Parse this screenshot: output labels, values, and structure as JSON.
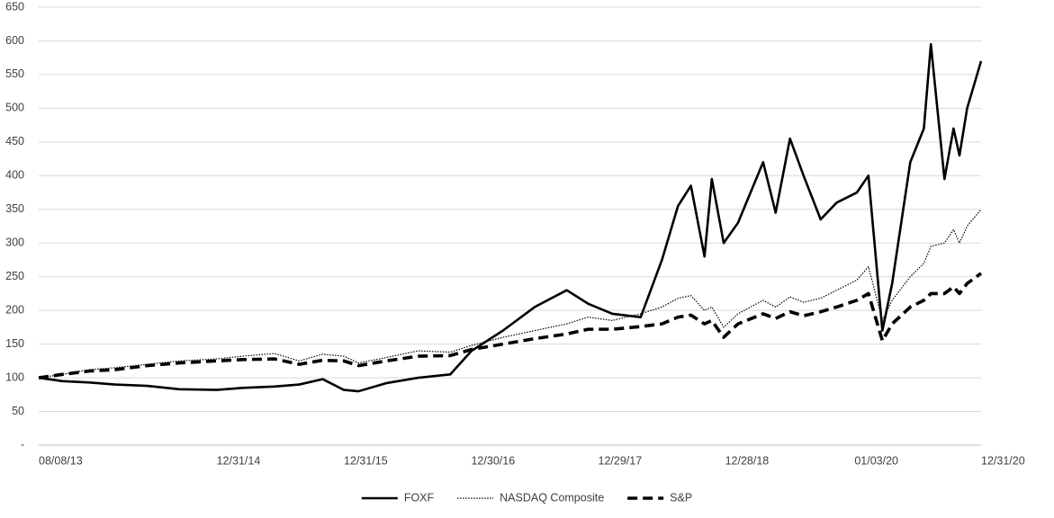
{
  "chart_data": {
    "type": "line",
    "x": [
      "2013-08-08",
      "2013-10-15",
      "2013-12-31",
      "2014-03-15",
      "2014-06-15",
      "2014-09-15",
      "2014-12-31",
      "2015-03-15",
      "2015-06-15",
      "2015-08-25",
      "2015-10-31",
      "2015-12-31",
      "2016-02-11",
      "2016-04-30",
      "2016-07-31",
      "2016-10-31",
      "2016-12-31",
      "2017-03-31",
      "2017-06-30",
      "2017-09-30",
      "2017-11-30",
      "2018-02-08",
      "2018-04-30",
      "2018-06-30",
      "2018-08-15",
      "2018-09-21",
      "2018-10-30",
      "2018-11-20",
      "2018-12-24",
      "2019-02-03",
      "2019-04-16",
      "2019-05-22",
      "2019-07-02",
      "2019-08-10",
      "2019-09-28",
      "2019-11-13",
      "2020-01-10",
      "2020-02-12",
      "2020-03-23",
      "2020-04-20",
      "2020-06-11",
      "2020-07-20",
      "2020-08-09",
      "2020-09-17",
      "2020-10-13",
      "2020-10-30",
      "2020-11-21",
      "2020-12-31"
    ],
    "series": [
      {
        "name": "FOXF",
        "color": "#000000",
        "dash": "solid",
        "values": [
          100,
          95,
          93,
          90,
          88,
          83,
          82,
          85,
          87,
          90,
          98,
          82,
          80,
          92,
          100,
          105,
          140,
          170,
          205,
          230,
          210,
          195,
          190,
          275,
          355,
          385,
          280,
          395,
          300,
          330,
          420,
          345,
          455,
          400,
          335,
          360,
          375,
          400,
          170,
          240,
          420,
          470,
          595,
          395,
          470,
          430,
          500,
          570
        ]
      },
      {
        "name": "NASDAQ Composite",
        "color": "#000000",
        "dash": "dotted",
        "values": [
          100,
          105,
          112,
          115,
          120,
          125,
          128,
          132,
          136,
          125,
          135,
          132,
          122,
          130,
          140,
          138,
          148,
          160,
          170,
          180,
          190,
          185,
          195,
          205,
          218,
          222,
          200,
          205,
          175,
          195,
          215,
          205,
          220,
          212,
          218,
          230,
          245,
          265,
          185,
          215,
          250,
          270,
          295,
          300,
          320,
          300,
          325,
          350
        ]
      },
      {
        "name": "S&P",
        "color": "#000000",
        "dash": "dashed",
        "values": [
          100,
          105,
          110,
          112,
          118,
          122,
          125,
          127,
          128,
          120,
          126,
          125,
          118,
          125,
          132,
          133,
          142,
          150,
          158,
          165,
          172,
          172,
          176,
          180,
          190,
          193,
          180,
          185,
          160,
          180,
          195,
          188,
          198,
          192,
          198,
          205,
          215,
          225,
          155,
          180,
          205,
          215,
          225,
          225,
          235,
          225,
          240,
          255
        ]
      }
    ],
    "xlim": [
      "2013-08-08",
      "2020-12-31"
    ],
    "xticks": [
      {
        "value": "2013-08-08",
        "label": "08/08/13"
      },
      {
        "value": "2014-12-31",
        "label": "12/31/14"
      },
      {
        "value": "2015-12-31",
        "label": "12/31/15"
      },
      {
        "value": "2016-12-30",
        "label": "12/30/16"
      },
      {
        "value": "2017-12-29",
        "label": "12/29/17"
      },
      {
        "value": "2018-12-28",
        "label": "12/28/18"
      },
      {
        "value": "2020-01-03",
        "label": "01/03/20"
      },
      {
        "value": "2020-12-31",
        "label": "12/31/20"
      }
    ],
    "ylim": [
      0,
      650
    ],
    "yticks": [
      {
        "value": 0,
        "label": "-"
      },
      50,
      100,
      150,
      200,
      250,
      300,
      350,
      400,
      450,
      500,
      550,
      600,
      650
    ],
    "grid": true,
    "legend": "bottom"
  }
}
